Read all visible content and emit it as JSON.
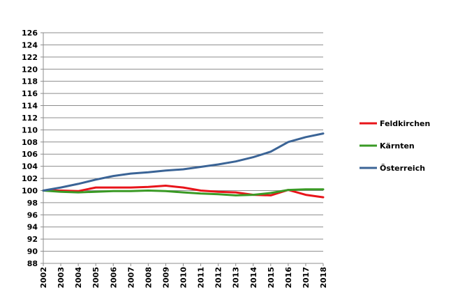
{
  "chart_data": {
    "type": "line",
    "x": [
      "2002",
      "2003",
      "2004",
      "2005",
      "2006",
      "2007",
      "2008",
      "2009",
      "2010",
      "2011",
      "2012",
      "2013",
      "2014",
      "2015",
      "2016",
      "2017",
      "2018"
    ],
    "ylim": [
      88,
      126
    ],
    "yticks": [
      88,
      90,
      92,
      94,
      96,
      98,
      100,
      102,
      104,
      106,
      108,
      110,
      112,
      114,
      116,
      118,
      120,
      122,
      124,
      126
    ],
    "grid": true,
    "legend": "right",
    "series": [
      {
        "name": "Feldkirchen",
        "color": "#e8141a",
        "values": [
          100,
          100,
          99.9,
          100.5,
          100.5,
          100.5,
          100.6,
          100.8,
          100.5,
          100,
          99.8,
          99.7,
          99.3,
          99.2,
          100.1,
          99.3,
          98.9
        ]
      },
      {
        "name": "Kärnten",
        "color": "#3a9a25",
        "values": [
          100,
          99.8,
          99.7,
          99.8,
          99.9,
          99.9,
          100,
          99.9,
          99.7,
          99.5,
          99.4,
          99.2,
          99.3,
          99.6,
          100.1,
          100.2,
          100.2
        ]
      },
      {
        "name": "Österreich",
        "color": "#3b6496",
        "values": [
          100,
          100.5,
          101.1,
          101.8,
          102.4,
          102.8,
          103,
          103.3,
          103.5,
          103.9,
          104.3,
          104.8,
          105.5,
          106.4,
          108,
          108.8,
          109.4
        ]
      }
    ]
  }
}
